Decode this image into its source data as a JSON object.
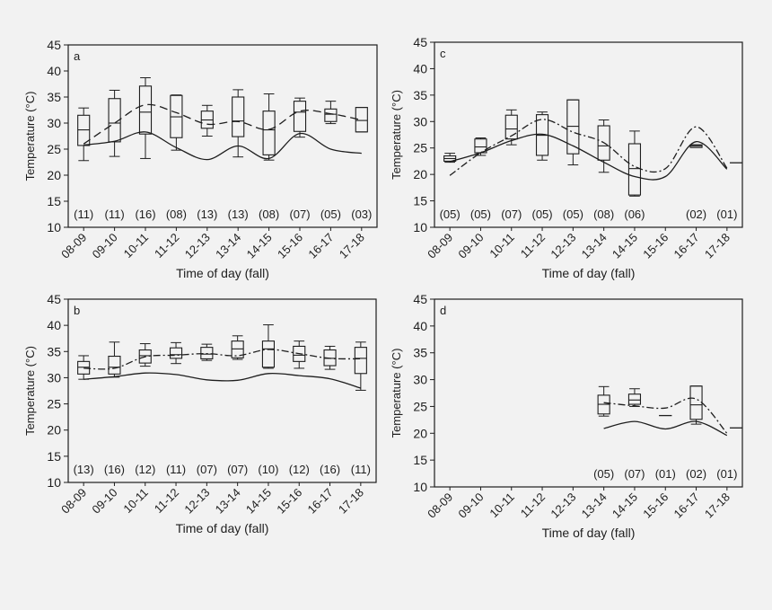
{
  "chart_data": [
    {
      "panel_label": "a",
      "type": "boxplot",
      "xlabel": "Time of day (fall)",
      "ylabel": "Temperature (°C)",
      "ylim": [
        10,
        45
      ],
      "yticks": [
        10,
        15,
        20,
        25,
        30,
        35,
        40,
        45
      ],
      "categories": [
        "08-09",
        "09-10",
        "10-11",
        "11-12",
        "12-13",
        "13-14",
        "14-15",
        "15-16",
        "16-17",
        "17-18"
      ],
      "counts": [
        "(11)",
        "(11)",
        "(16)",
        "(08)",
        "(13)",
        "(13)",
        "(08)",
        "(07)",
        "(05)",
        "(03)"
      ],
      "boxes": [
        {
          "category": "08-09",
          "min": 22.8,
          "q1": 25.7,
          "median": 28.7,
          "q3": 31.5,
          "max": 32.9
        },
        {
          "category": "09-10",
          "min": 23.6,
          "q1": 26.4,
          "median": 30.0,
          "q3": 34.7,
          "max": 36.3
        },
        {
          "category": "10-11",
          "min": 23.2,
          "q1": 27.9,
          "median": 32.1,
          "q3": 37.1,
          "max": 38.7
        },
        {
          "category": "11-12",
          "min": 24.8,
          "q1": 27.2,
          "median": 31.2,
          "q3": 35.3,
          "max": 35.4
        },
        {
          "category": "12-13",
          "min": 27.5,
          "q1": 29.0,
          "median": 30.6,
          "q3": 32.3,
          "max": 33.4
        },
        {
          "category": "13-14",
          "min": 23.5,
          "q1": 27.4,
          "median": 30.4,
          "q3": 35.0,
          "max": 36.4
        },
        {
          "category": "14-15",
          "min": 22.9,
          "q1": 23.9,
          "median": 28.7,
          "q3": 32.3,
          "max": 35.6
        },
        {
          "category": "15-16",
          "min": 27.3,
          "q1": 28.4,
          "median": 32.1,
          "q3": 34.2,
          "max": 34.8
        },
        {
          "category": "16-17",
          "min": 29.9,
          "q1": 30.3,
          "median": 31.7,
          "q3": 32.7,
          "max": 34.2
        },
        {
          "category": "17-18",
          "min": 28.3,
          "q1": 28.3,
          "median": 30.5,
          "q3": 33.0,
          "max": 33.0
        }
      ],
      "series": [
        {
          "style": "dashed",
          "x": [
            0,
            1,
            2,
            3,
            4,
            5,
            6,
            7,
            8,
            9
          ],
          "values": [
            26.0,
            30.0,
            33.5,
            32.0,
            29.8,
            30.3,
            28.8,
            32.3,
            31.8,
            30.6
          ]
        },
        {
          "style": "solid",
          "x": [
            0,
            1,
            2,
            3,
            4,
            5,
            6,
            7,
            8,
            9
          ],
          "values": [
            25.8,
            26.5,
            28.3,
            25.3,
            23.0,
            25.6,
            23.2,
            28.0,
            25.0,
            24.2
          ]
        }
      ]
    },
    {
      "panel_label": "c",
      "type": "boxplot",
      "xlabel": "Time of day (fall)",
      "ylabel": "Temperature (°C)",
      "ylim": [
        10,
        45
      ],
      "yticks": [
        10,
        15,
        20,
        25,
        30,
        35,
        40,
        45
      ],
      "categories": [
        "08-09",
        "09-10",
        "10-11",
        "11-12",
        "12-13",
        "13-14",
        "14-15",
        "15-16",
        "16-17",
        "17-18"
      ],
      "counts": [
        "(05)",
        "(05)",
        "(07)",
        "(05)",
        "(05)",
        "(08)",
        "(06)",
        "",
        "(02)",
        "(01)"
      ],
      "boxes": [
        {
          "category": "08-09",
          "min": 22.3,
          "q1": 22.5,
          "median": 23.0,
          "q3": 23.5,
          "max": 24.0
        },
        {
          "category": "09-10",
          "min": 23.6,
          "q1": 24.1,
          "median": 25.2,
          "q3": 26.7,
          "max": 26.9
        },
        {
          "category": "10-11",
          "min": 25.6,
          "q1": 26.7,
          "median": 28.6,
          "q3": 31.2,
          "max": 32.2
        },
        {
          "category": "11-12",
          "min": 22.7,
          "q1": 23.6,
          "median": 27.4,
          "q3": 31.3,
          "max": 31.8
        },
        {
          "category": "12-13",
          "min": 21.8,
          "q1": 23.9,
          "median": 29.1,
          "q3": 34.1,
          "max": 34.1
        },
        {
          "category": "13-14",
          "min": 20.4,
          "q1": 22.7,
          "median": 25.4,
          "q3": 29.2,
          "max": 30.3
        },
        {
          "category": "14-15",
          "min": 15.9,
          "q1": 16.1,
          "median": 21.1,
          "q3": 25.8,
          "max": 28.2
        },
        {
          "category": "16-17",
          "min": 25.1,
          "q1": 25.1,
          "median": 25.4,
          "q3": 25.6,
          "max": 25.6
        }
      ],
      "series": [
        {
          "style": "dash-dot",
          "x": [
            0,
            1,
            2,
            3,
            4,
            5,
            6,
            7,
            8,
            9
          ],
          "values": [
            19.8,
            24.1,
            27.3,
            30.4,
            28.0,
            26.0,
            21.5,
            21.1,
            29.0,
            21.2
          ]
        },
        {
          "style": "solid",
          "x": [
            0,
            1,
            2,
            3,
            4,
            5,
            6,
            7,
            8,
            9
          ],
          "values": [
            22.4,
            24.1,
            26.4,
            27.6,
            25.4,
            22.3,
            19.6,
            19.6,
            26.2,
            21.0
          ]
        }
      ],
      "flat_marks": [
        {
          "x": 9.3,
          "value": 22.2
        }
      ]
    },
    {
      "panel_label": "b",
      "type": "boxplot",
      "xlabel": "Time of day (fall)",
      "ylabel": "Temperature (°C)",
      "ylim": [
        10,
        45
      ],
      "yticks": [
        10,
        15,
        20,
        25,
        30,
        35,
        40,
        45
      ],
      "categories": [
        "08-09",
        "09-10",
        "10-11",
        "11-12",
        "12-13",
        "13-14",
        "14-15",
        "15-16",
        "16-17",
        "17-18"
      ],
      "counts": [
        "(13)",
        "(16)",
        "(12)",
        "(11)",
        "(07)",
        "(07)",
        "(10)",
        "(12)",
        "(16)",
        "(11)"
      ],
      "boxes": [
        {
          "category": "08-09",
          "min": 29.7,
          "q1": 30.7,
          "median": 32.0,
          "q3": 33.1,
          "max": 34.2
        },
        {
          "category": "09-10",
          "min": 30.1,
          "q1": 30.7,
          "median": 32.0,
          "q3": 34.1,
          "max": 36.8
        },
        {
          "category": "10-11",
          "min": 32.2,
          "q1": 32.8,
          "median": 34.2,
          "q3": 35.3,
          "max": 36.5
        },
        {
          "category": "11-12",
          "min": 32.7,
          "q1": 33.7,
          "median": 34.4,
          "q3": 35.7,
          "max": 36.7
        },
        {
          "category": "12-13",
          "min": 33.3,
          "q1": 33.6,
          "median": 34.5,
          "q3": 35.8,
          "max": 36.4
        },
        {
          "category": "13-14",
          "min": 33.5,
          "q1": 33.8,
          "median": 35.5,
          "q3": 37.0,
          "max": 38.0
        },
        {
          "category": "14-15",
          "min": 31.8,
          "q1": 32.0,
          "median": 35.5,
          "q3": 37.0,
          "max": 40.1
        },
        {
          "category": "15-16",
          "min": 31.8,
          "q1": 33.1,
          "median": 34.3,
          "q3": 36.0,
          "max": 37.0
        },
        {
          "category": "16-17",
          "min": 31.6,
          "q1": 32.3,
          "median": 33.7,
          "q3": 35.3,
          "max": 36.0
        },
        {
          "category": "17-18",
          "min": 27.6,
          "q1": 30.8,
          "median": 33.7,
          "q3": 35.8,
          "max": 36.8
        }
      ],
      "series": [
        {
          "style": "dash-dot",
          "x": [
            0,
            1,
            2,
            3,
            4,
            5,
            6,
            7,
            8,
            9
          ],
          "values": [
            31.8,
            31.8,
            34.0,
            34.3,
            34.6,
            34.2,
            35.4,
            34.6,
            33.7,
            33.6
          ]
        },
        {
          "style": "solid",
          "x": [
            0,
            1,
            2,
            3,
            4,
            5,
            6,
            7,
            8,
            9
          ],
          "values": [
            29.7,
            30.2,
            30.9,
            30.6,
            29.6,
            29.5,
            30.8,
            30.4,
            29.8,
            28.0
          ]
        }
      ]
    },
    {
      "panel_label": "d",
      "type": "boxplot",
      "xlabel": "Time of day (fall)",
      "ylabel": "Temperature (°C)",
      "ylim": [
        10,
        45
      ],
      "yticks": [
        10,
        15,
        20,
        25,
        30,
        35,
        40,
        45
      ],
      "categories": [
        "08-09",
        "09-10",
        "10-11",
        "11-12",
        "12-13",
        "13-14",
        "14-15",
        "15-16",
        "16-17",
        "17-18"
      ],
      "counts": [
        "",
        "",
        "",
        "",
        "",
        "(05)",
        "(07)",
        "(01)",
        "(02)",
        "(01)"
      ],
      "boxes": [
        {
          "category": "13-14",
          "min": 23.2,
          "q1": 23.6,
          "median": 25.4,
          "q3": 27.1,
          "max": 28.7
        },
        {
          "category": "14-15",
          "min": 25.0,
          "q1": 25.4,
          "median": 26.2,
          "q3": 27.3,
          "max": 28.3
        },
        {
          "category": "16-17",
          "min": 21.7,
          "q1": 22.6,
          "median": 25.3,
          "q3": 28.8,
          "max": 28.8
        }
      ],
      "series": [
        {
          "style": "dash-dot",
          "x": [
            5,
            6,
            7,
            8,
            9
          ],
          "values": [
            25.7,
            25.1,
            24.7,
            26.4,
            20.0
          ]
        },
        {
          "style": "solid",
          "x": [
            5,
            6,
            7,
            8,
            9
          ],
          "values": [
            20.9,
            22.2,
            20.8,
            22.2,
            19.6
          ]
        }
      ],
      "flat_marks": [
        {
          "x": 7.0,
          "value": 23.3
        },
        {
          "x": 9.3,
          "value": 21.0
        }
      ]
    }
  ]
}
